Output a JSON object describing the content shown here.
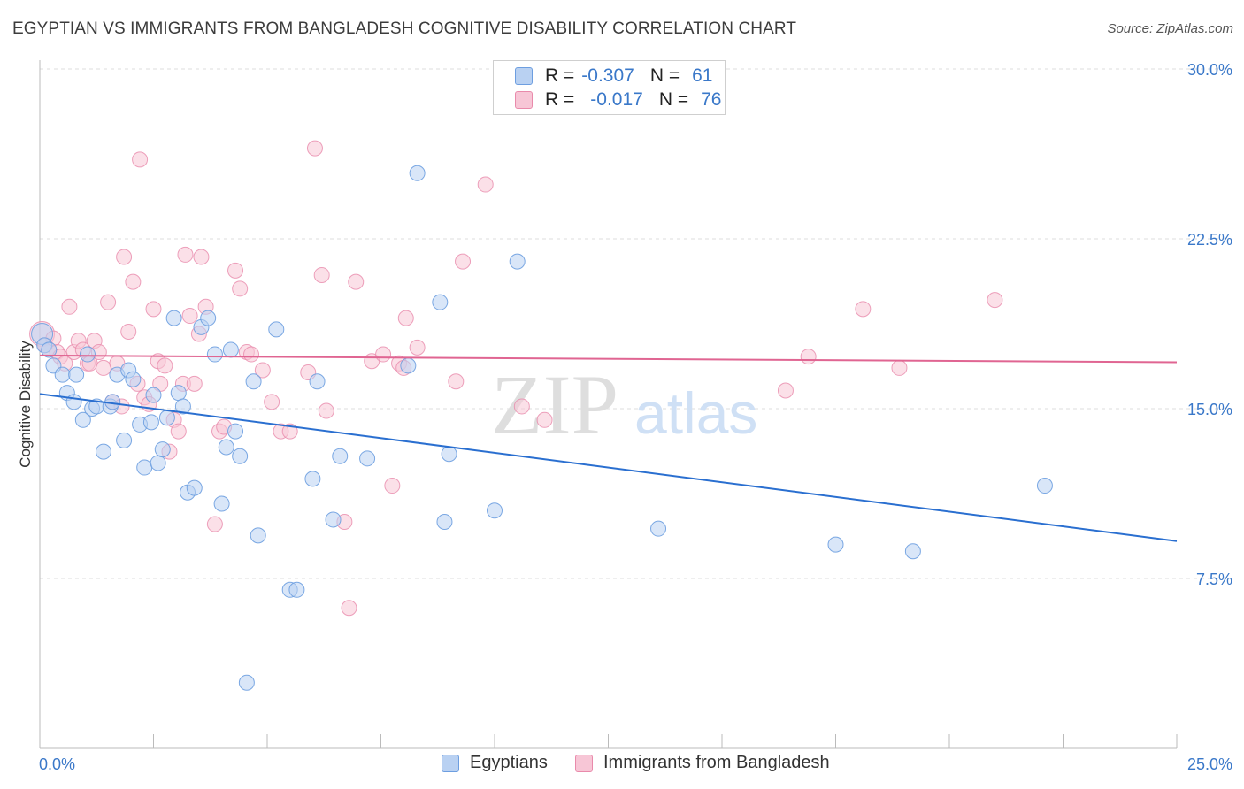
{
  "header": {
    "title": "EGYPTIAN VS IMMIGRANTS FROM BANGLADESH COGNITIVE DISABILITY CORRELATION CHART",
    "source": "Source: ZipAtlas.com"
  },
  "watermark": {
    "zip": "ZIP",
    "atlas": "atlas"
  },
  "legend": {
    "series1": {
      "r_label": "R =",
      "r_value": "-0.307",
      "n_label": "N =",
      "n_value": "61"
    },
    "series2": {
      "r_label": "R =",
      "r_value": "-0.017",
      "n_label": "N =",
      "n_value": "76"
    }
  },
  "colors": {
    "blue_fill": "#b9d1f2",
    "blue_stroke": "#6d9ee0",
    "blue_line": "#2a6fd0",
    "pink_fill": "#f7c6d6",
    "pink_stroke": "#e98aab",
    "pink_line": "#e06592",
    "tick_label": "#3a78c9",
    "grid": "#dddddd"
  },
  "chart_data": {
    "type": "scatter",
    "title": "EGYPTIAN VS IMMIGRANTS FROM BANGLADESH COGNITIVE DISABILITY CORRELATION CHART",
    "xlabel": "",
    "ylabel": "Cognitive Disability",
    "xlim": [
      0,
      25
    ],
    "ylim": [
      0,
      30
    ],
    "x_tick_labels": [
      "0.0%",
      "25.0%"
    ],
    "y_ticks": [
      7.5,
      15.0,
      22.5,
      30.0
    ],
    "y_tick_labels": [
      "7.5%",
      "15.0%",
      "22.5%",
      "30.0%"
    ],
    "series": [
      {
        "name": "Egyptians",
        "trend": {
          "x": [
            0,
            25
          ],
          "y": [
            15.65,
            9.15
          ]
        },
        "points": [
          [
            0.05,
            18.3
          ],
          [
            0.1,
            17.8
          ],
          [
            0.2,
            17.6
          ],
          [
            0.3,
            16.9
          ],
          [
            0.5,
            16.5
          ],
          [
            0.6,
            15.7
          ],
          [
            0.8,
            16.5
          ],
          [
            0.75,
            15.3
          ],
          [
            0.95,
            14.5
          ],
          [
            1.05,
            17.4
          ],
          [
            1.15,
            15.0
          ],
          [
            1.25,
            15.1
          ],
          [
            1.4,
            13.1
          ],
          [
            1.55,
            15.1
          ],
          [
            1.6,
            15.3
          ],
          [
            1.7,
            16.5
          ],
          [
            1.85,
            13.6
          ],
          [
            1.95,
            16.7
          ],
          [
            2.05,
            16.3
          ],
          [
            2.2,
            14.3
          ],
          [
            2.3,
            12.4
          ],
          [
            2.45,
            14.4
          ],
          [
            2.5,
            15.6
          ],
          [
            2.6,
            12.6
          ],
          [
            2.7,
            13.2
          ],
          [
            2.8,
            14.6
          ],
          [
            2.95,
            19.0
          ],
          [
            3.05,
            15.7
          ],
          [
            3.15,
            15.1
          ],
          [
            3.25,
            11.3
          ],
          [
            3.4,
            11.5
          ],
          [
            3.55,
            18.6
          ],
          [
            3.7,
            19.0
          ],
          [
            3.85,
            17.4
          ],
          [
            4.0,
            10.8
          ],
          [
            4.1,
            13.3
          ],
          [
            4.2,
            17.6
          ],
          [
            4.3,
            14.0
          ],
          [
            4.4,
            12.9
          ],
          [
            4.55,
            2.9
          ],
          [
            4.7,
            16.2
          ],
          [
            4.8,
            9.4
          ],
          [
            5.2,
            18.5
          ],
          [
            5.5,
            7.0
          ],
          [
            5.65,
            7.0
          ],
          [
            6.0,
            11.9
          ],
          [
            6.1,
            16.2
          ],
          [
            6.45,
            10.1
          ],
          [
            6.6,
            12.9
          ],
          [
            7.2,
            12.8
          ],
          [
            8.1,
            16.9
          ],
          [
            8.3,
            25.4
          ],
          [
            8.8,
            19.7
          ],
          [
            8.9,
            10.0
          ],
          [
            9.0,
            13.0
          ],
          [
            10.0,
            10.5
          ],
          [
            10.5,
            21.5
          ],
          [
            13.6,
            9.7
          ],
          [
            17.5,
            9.0
          ],
          [
            19.2,
            8.7
          ],
          [
            22.1,
            11.6
          ]
        ]
      },
      {
        "name": "Immigrants from Bangladesh",
        "trend": {
          "x": [
            0,
            25
          ],
          "y": [
            17.35,
            17.05
          ]
        },
        "points": [
          [
            0.05,
            18.3
          ],
          [
            0.12,
            17.8
          ],
          [
            0.2,
            17.6
          ],
          [
            0.3,
            18.1
          ],
          [
            0.38,
            17.5
          ],
          [
            0.45,
            17.3
          ],
          [
            0.55,
            17.0
          ],
          [
            0.65,
            19.5
          ],
          [
            0.75,
            17.5
          ],
          [
            0.85,
            18.0
          ],
          [
            0.95,
            17.6
          ],
          [
            1.05,
            17.0
          ],
          [
            1.1,
            17.0
          ],
          [
            1.2,
            18.0
          ],
          [
            1.3,
            17.5
          ],
          [
            1.4,
            16.8
          ],
          [
            1.5,
            19.7
          ],
          [
            1.6,
            15.3
          ],
          [
            1.7,
            17.0
          ],
          [
            1.8,
            15.1
          ],
          [
            1.85,
            21.7
          ],
          [
            1.95,
            18.4
          ],
          [
            2.05,
            20.6
          ],
          [
            2.15,
            16.1
          ],
          [
            2.2,
            26.0
          ],
          [
            2.3,
            15.5
          ],
          [
            2.4,
            15.2
          ],
          [
            2.5,
            19.4
          ],
          [
            2.6,
            17.1
          ],
          [
            2.65,
            16.1
          ],
          [
            2.75,
            16.9
          ],
          [
            2.85,
            13.1
          ],
          [
            2.95,
            14.5
          ],
          [
            3.05,
            14.0
          ],
          [
            3.15,
            16.1
          ],
          [
            3.2,
            21.8
          ],
          [
            3.3,
            19.1
          ],
          [
            3.4,
            16.1
          ],
          [
            3.5,
            18.3
          ],
          [
            3.55,
            21.7
          ],
          [
            3.65,
            19.5
          ],
          [
            3.85,
            9.9
          ],
          [
            3.95,
            14.0
          ],
          [
            4.05,
            14.2
          ],
          [
            4.3,
            21.1
          ],
          [
            4.4,
            20.3
          ],
          [
            4.55,
            17.5
          ],
          [
            4.65,
            17.4
          ],
          [
            4.9,
            16.7
          ],
          [
            5.1,
            15.3
          ],
          [
            5.3,
            14.0
          ],
          [
            5.5,
            14.0
          ],
          [
            5.9,
            16.6
          ],
          [
            6.05,
            26.5
          ],
          [
            6.2,
            20.9
          ],
          [
            6.3,
            14.9
          ],
          [
            6.7,
            10.0
          ],
          [
            6.8,
            6.2
          ],
          [
            6.95,
            20.6
          ],
          [
            7.3,
            17.1
          ],
          [
            7.55,
            17.4
          ],
          [
            7.75,
            11.6
          ],
          [
            7.9,
            17.0
          ],
          [
            8.0,
            16.8
          ],
          [
            8.05,
            19.0
          ],
          [
            8.3,
            17.7
          ],
          [
            9.15,
            16.2
          ],
          [
            9.3,
            21.5
          ],
          [
            9.8,
            24.9
          ],
          [
            10.6,
            15.1
          ],
          [
            11.1,
            14.5
          ],
          [
            16.4,
            15.8
          ],
          [
            16.9,
            17.3
          ],
          [
            18.1,
            19.4
          ],
          [
            18.9,
            16.8
          ],
          [
            21.0,
            19.8
          ]
        ]
      }
    ],
    "legend_position": "top-center"
  }
}
